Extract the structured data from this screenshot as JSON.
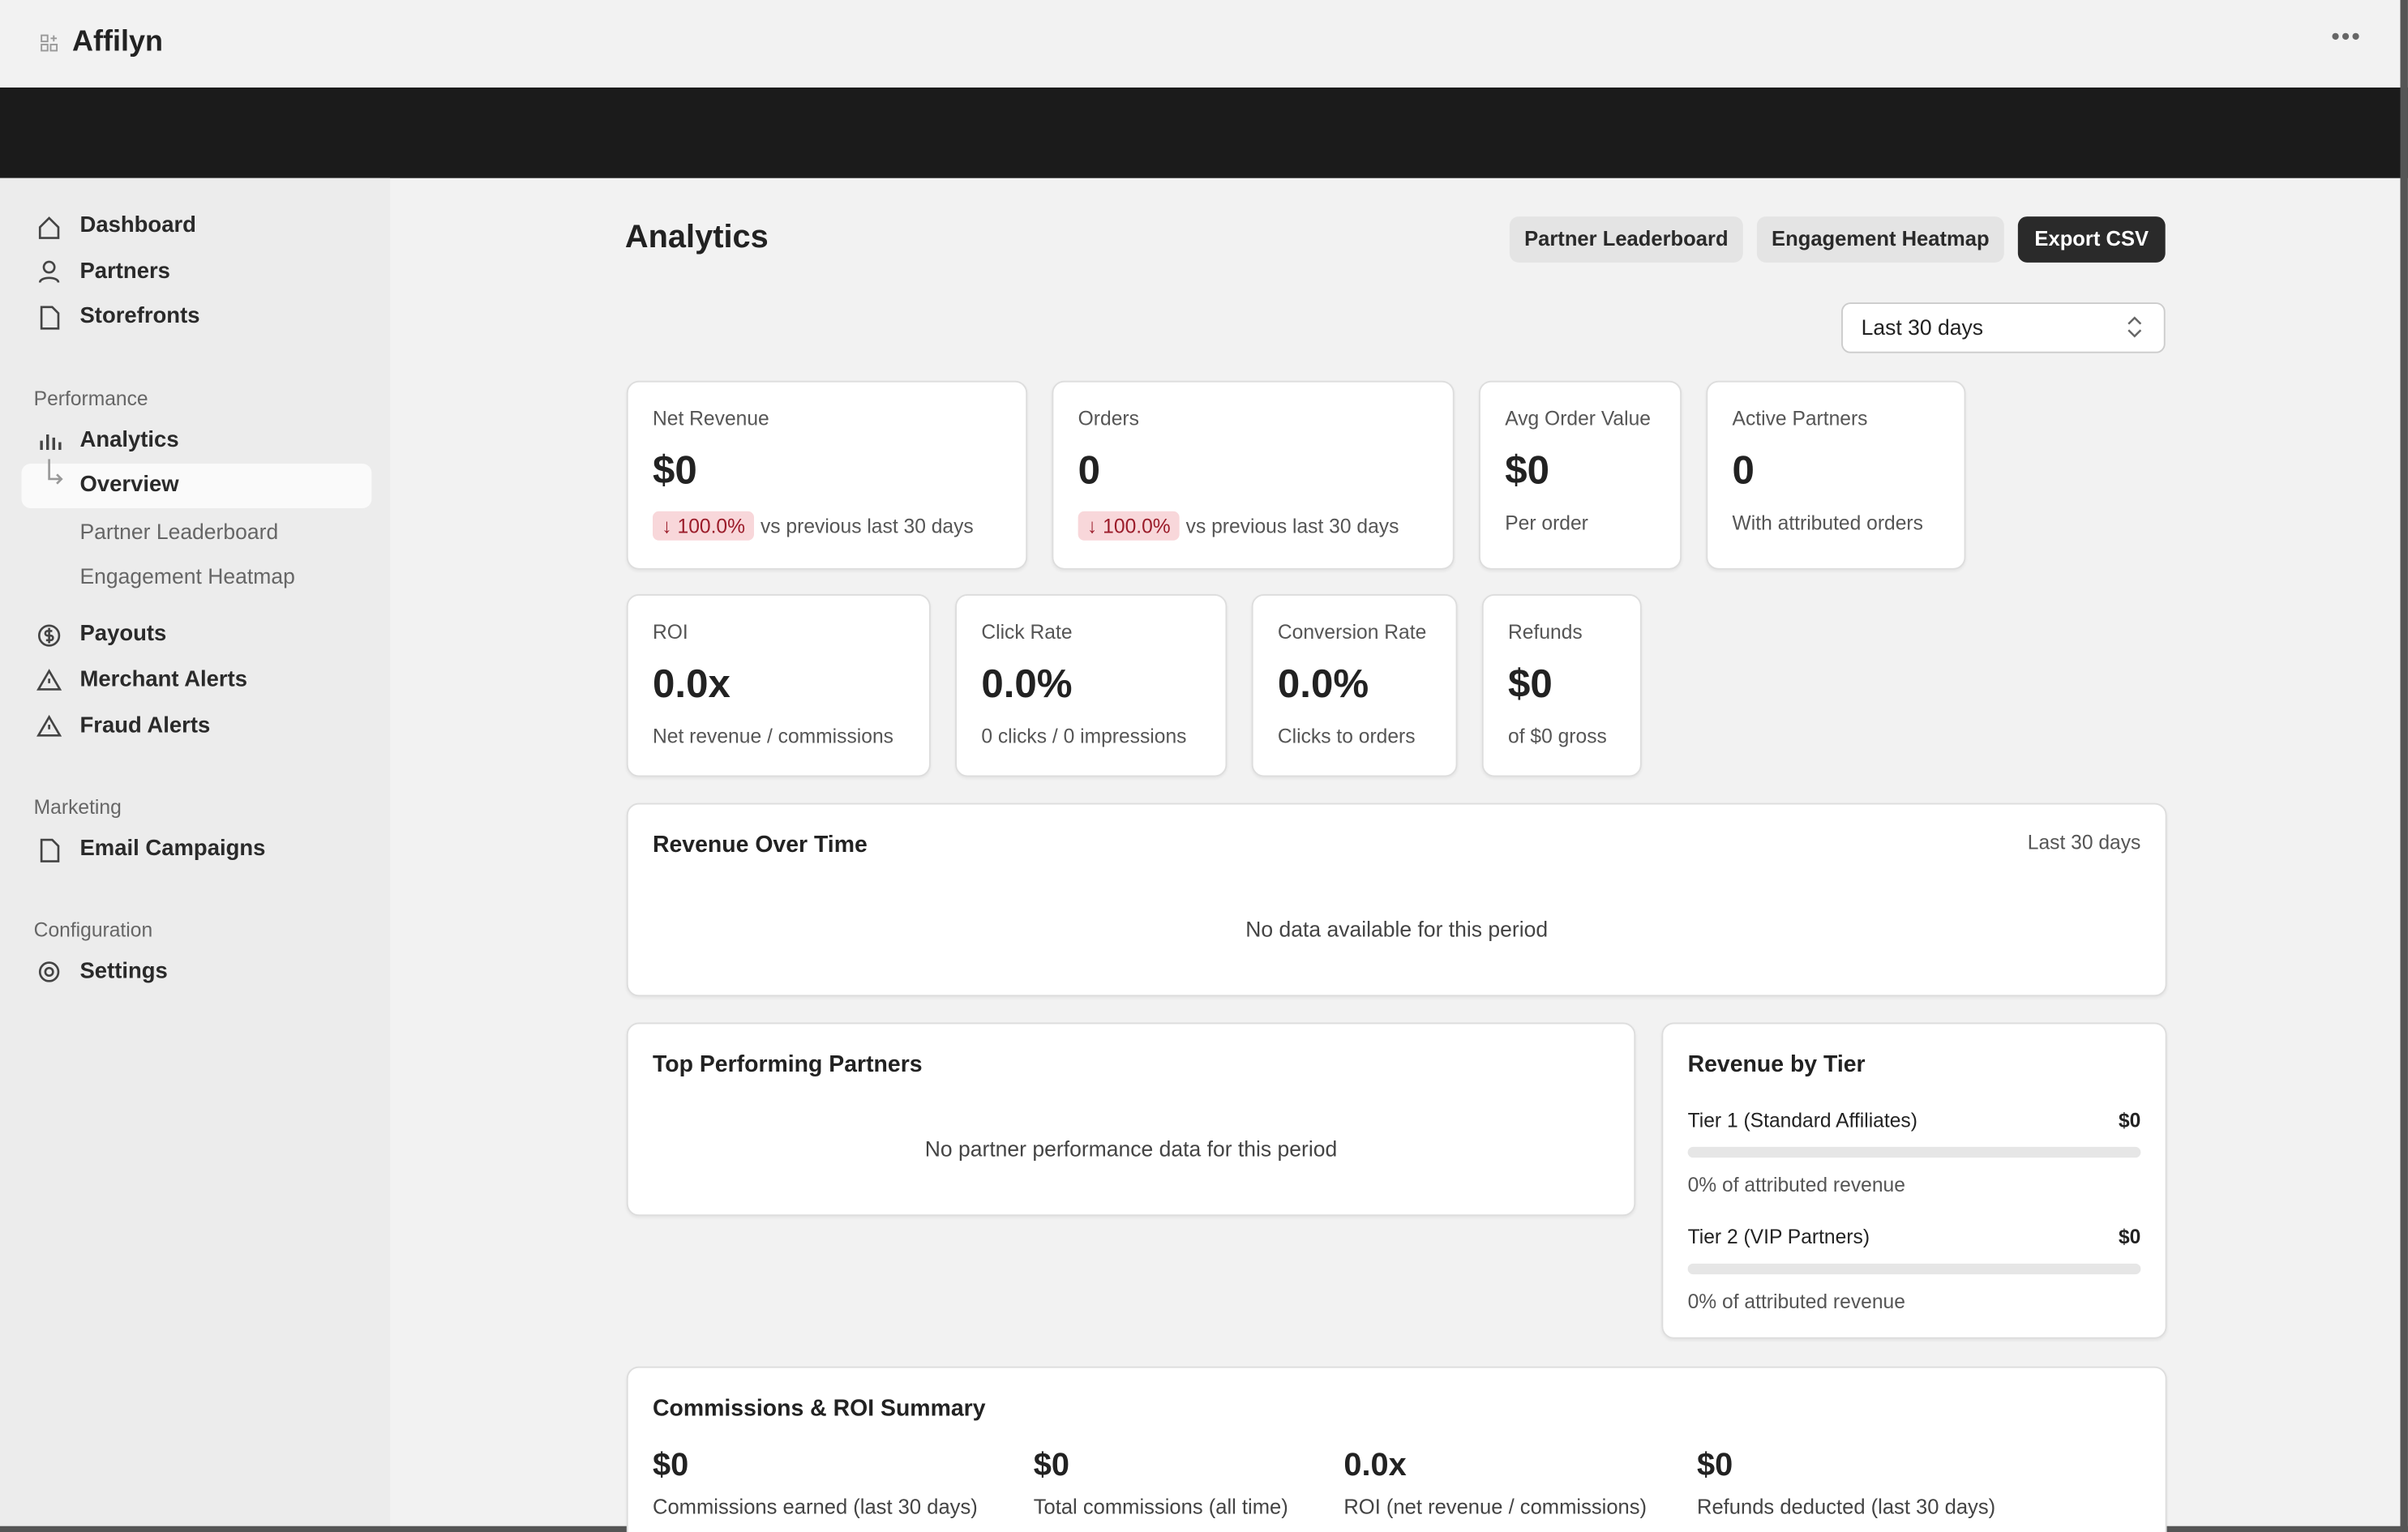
{
  "header": {
    "brand": "Affilyn"
  },
  "sidebar": {
    "items": [
      "Dashboard",
      "Partners",
      "Storefronts"
    ],
    "performance": {
      "title": "Performance",
      "items": [
        "Analytics",
        "Overview",
        "Partner Leaderboard",
        "Engagement Heatmap",
        "Payouts",
        "Merchant Alerts",
        "Fraud Alerts"
      ]
    },
    "marketing": {
      "title": "Marketing",
      "items": [
        "Email Campaigns"
      ]
    },
    "configuration": {
      "title": "Configuration",
      "items": [
        "Settings"
      ]
    }
  },
  "main": {
    "title": "Analytics",
    "buttons": [
      "Partner Leaderboard",
      "Engagement Heatmap",
      "Export CSV"
    ],
    "range": "Last 30 days",
    "kpis": [
      {
        "label": "Net Revenue",
        "value": "$0",
        "badge": "↓ 100.0%",
        "note": "vs previous last 30 days"
      },
      {
        "label": "Orders",
        "value": "0",
        "badge": "↓ 100.0%",
        "note": "vs previous last 30 days"
      },
      {
        "label": "Avg Order Value",
        "value": "$0",
        "note": "Per order"
      },
      {
        "label": "Active Partners",
        "value": "0",
        "note": "With attributed orders"
      },
      {
        "label": "ROI",
        "value": "0.0x",
        "note": "Net revenue / commissions"
      },
      {
        "label": "Click Rate",
        "value": "0.0%",
        "note": "0 clicks / 0 impressions"
      },
      {
        "label": "Conversion Rate",
        "value": "0.0%",
        "note": "Clicks to orders"
      },
      {
        "label": "Refunds",
        "value": "$0",
        "note": "of $0 gross"
      }
    ],
    "revenue_over_time": {
      "title": "Revenue Over Time",
      "period": "Last 30 days",
      "empty": "No data available for this period"
    },
    "top_partners": {
      "title": "Top Performing Partners",
      "empty": "No partner performance data for this period"
    },
    "revenue_by_tier": {
      "title": "Revenue by Tier",
      "tiers": [
        {
          "name": "Tier 1 (Standard Affiliates)",
          "value": "$0",
          "note": "0% of attributed revenue"
        },
        {
          "name": "Tier 2 (VIP Partners)",
          "value": "$0",
          "note": "0% of attributed revenue"
        }
      ]
    },
    "summary": {
      "title": "Commissions & ROI Summary",
      "items": [
        {
          "value": "$0",
          "label": "Commissions earned (last 30 days)"
        },
        {
          "value": "$0",
          "label": "Total commissions (all time)"
        },
        {
          "value": "0.0x",
          "label": "ROI (net revenue / commissions)"
        },
        {
          "value": "$0",
          "label": "Refunds deducted (last 30 days)"
        }
      ]
    }
  }
}
